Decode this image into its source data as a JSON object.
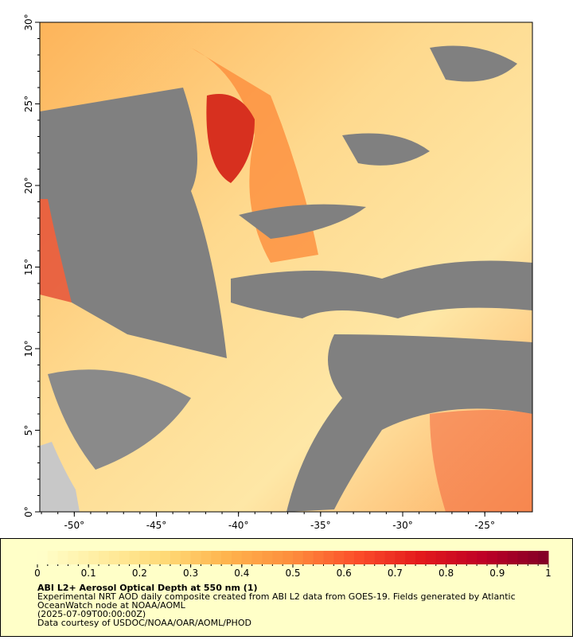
{
  "map": {
    "lat_axis": {
      "lim": [
        0,
        30
      ],
      "ticks": [
        {
          "value": 0,
          "label": "0°"
        },
        {
          "value": 5,
          "label": "5°"
        },
        {
          "value": 10,
          "label": "10°"
        },
        {
          "value": 15,
          "label": "15°"
        },
        {
          "value": 20,
          "label": "20°"
        },
        {
          "value": 25,
          "label": "25°"
        },
        {
          "value": 30,
          "label": "30°"
        }
      ]
    },
    "lon_axis": {
      "lim": [
        -52.1,
        -22.1
      ],
      "ticks": [
        {
          "value": -50,
          "label": "-50°"
        },
        {
          "value": -45,
          "label": "-45°"
        },
        {
          "value": -40,
          "label": "-40°"
        },
        {
          "value": -35,
          "label": "-35°"
        },
        {
          "value": -30,
          "label": "-30°"
        },
        {
          "value": -25,
          "label": "-25°"
        }
      ]
    },
    "colorbar": {
      "lim": [
        0,
        1
      ],
      "ticks": [
        0,
        0.1,
        0.2,
        0.3,
        0.4,
        0.5,
        0.6,
        0.7,
        0.8,
        0.9,
        1
      ],
      "colors": [
        "#ffffcc",
        "#ffeda0",
        "#fed976",
        "#feb24c",
        "#fd8d3c",
        "#fc4e2a",
        "#e31a1c",
        "#bd0026",
        "#800026"
      ]
    },
    "caption": {
      "title": "ABI L2+ Aerosol Optical Depth at 550 nm (1)",
      "lines": [
        "Experimental NRT AOD daily composite created from ABI L2 data from GOES-19. Fields generated by Atlantic",
        "OceanWatch node at NOAA/AOML",
        "(2025-07-09T00:00:00Z)",
        "Data courtesy of USDOC/NOAA/OAR/AOML/PHOD"
      ]
    }
  }
}
